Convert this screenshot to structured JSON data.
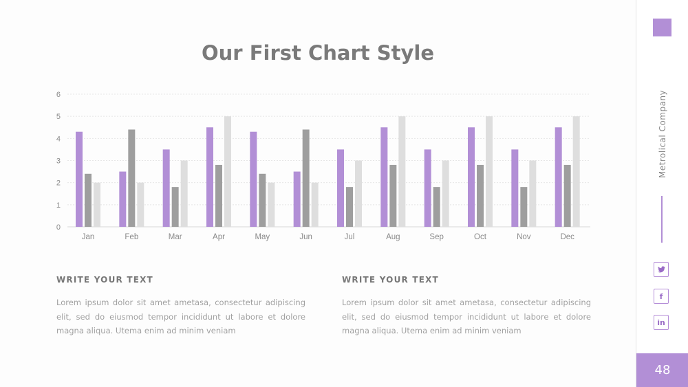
{
  "title": "Our First Chart Style",
  "colors": {
    "accent": "#b28fd6",
    "dark_gray": "#9e9e9e",
    "light_gray": "#dedede"
  },
  "chart_data": {
    "type": "bar",
    "categories": [
      "Jan",
      "Feb",
      "Mar",
      "Apr",
      "May",
      "Jun",
      "Jul",
      "Aug",
      "Sep",
      "Oct",
      "Nov",
      "Dec"
    ],
    "series": [
      {
        "values": [
          4.3,
          2.5,
          3.5,
          4.5,
          4.3,
          2.5,
          3.5,
          4.5,
          3.5,
          4.5,
          3.5,
          4.5
        ]
      },
      {
        "values": [
          2.4,
          4.4,
          1.8,
          2.8,
          2.4,
          4.4,
          1.8,
          2.8,
          1.8,
          2.8,
          1.8,
          2.8
        ]
      },
      {
        "values": [
          2,
          2,
          3,
          5,
          2,
          2,
          3,
          5,
          3,
          5,
          3,
          5
        ]
      }
    ],
    "yticks": [
      "0",
      "1",
      "2",
      "3",
      "4",
      "5",
      "6"
    ],
    "ylim": [
      0,
      6
    ],
    "grid": true,
    "legend": "none"
  },
  "text_columns": [
    {
      "heading": "WRITE YOUR TEXT",
      "body": "Lorem ipsum dolor sit amet ametasa, consectetur adipiscing elit, sed do eiusmod tempor incididunt ut labore et dolore magna aliqua. Utema enim ad minim veniam"
    },
    {
      "heading": "WRITE YOUR TEXT",
      "body": "Lorem ipsum dolor sit amet ametasa, consectetur adipiscing elit, sed do eiusmod tempor incididunt ut labore et dolore magna aliqua. Utema enim ad minim veniam"
    }
  ],
  "sidebar": {
    "company": "Metrolical Company",
    "social": [
      {
        "icon": "twitter-icon",
        "glyph": "❧"
      },
      {
        "icon": "facebook-icon",
        "glyph": "f"
      },
      {
        "icon": "linkedin-icon",
        "glyph": "in"
      }
    ],
    "page_number": "48"
  }
}
